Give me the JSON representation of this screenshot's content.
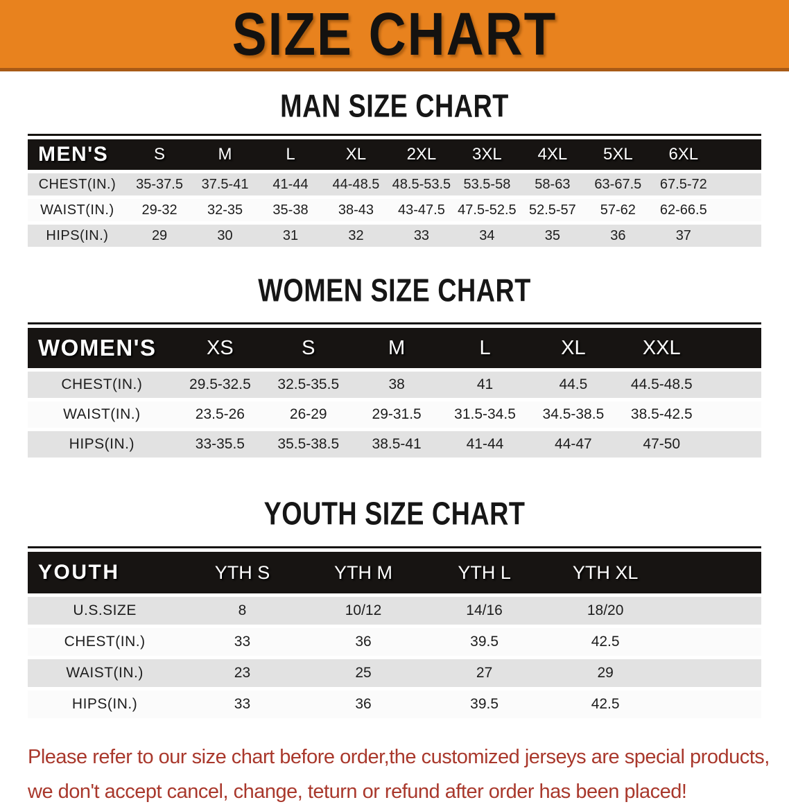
{
  "banner": {
    "title": "SIZE CHART"
  },
  "colors": {
    "banner_bg": "#E8821E",
    "banner_edge": "#A85A16",
    "banner_text": "#141210",
    "table_header_bg": "#171412",
    "table_header_text": "#FFFFFF",
    "stripe_gray": "#E2E2E2",
    "stripe_white": "#FBFBFB",
    "footer_text": "#A9382C"
  },
  "sections": {
    "men": {
      "heading": "MAN SIZE CHART",
      "corner_label": "MEN'S",
      "sizes": [
        "S",
        "M",
        "L",
        "XL",
        "2XL",
        "3XL",
        "4XL",
        "5XL",
        "6XL"
      ],
      "rows": [
        {
          "label": "CHEST(IN.)",
          "values": [
            "35-37.5",
            "37.5-41",
            "41-44",
            "44-48.5",
            "48.5-53.5",
            "53.5-58",
            "58-63",
            "63-67.5",
            "67.5-72"
          ]
        },
        {
          "label": "WAIST(IN.)",
          "values": [
            "29-32",
            "32-35",
            "35-38",
            "38-43",
            "43-47.5",
            "47.5-52.5",
            "52.5-57",
            "57-62",
            "62-66.5"
          ]
        },
        {
          "label": "HIPS(IN.)",
          "values": [
            "29",
            "30",
            "31",
            "32",
            "33",
            "34",
            "35",
            "36",
            "37"
          ]
        }
      ]
    },
    "women": {
      "heading": "WOMEN SIZE CHART",
      "corner_label": "WOMEN'S",
      "sizes": [
        "XS",
        "S",
        "M",
        "L",
        "XL",
        "XXL"
      ],
      "rows": [
        {
          "label": "CHEST(IN.)",
          "values": [
            "29.5-32.5",
            "32.5-35.5",
            "38",
            "41",
            "44.5",
            "44.5-48.5"
          ]
        },
        {
          "label": "WAIST(IN.)",
          "values": [
            "23.5-26",
            "26-29",
            "29-31.5",
            "31.5-34.5",
            "34.5-38.5",
            "38.5-42.5"
          ]
        },
        {
          "label": "HIPS(IN.)",
          "values": [
            "33-35.5",
            "35.5-38.5",
            "38.5-41",
            "41-44",
            "44-47",
            "47-50"
          ]
        }
      ]
    },
    "youth": {
      "heading": "YOUTH SIZE CHART",
      "corner_label": "YOUTH",
      "sizes": [
        "YTH S",
        "YTH M",
        "YTH L",
        "YTH XL"
      ],
      "rows": [
        {
          "label": "U.S.SIZE",
          "values": [
            "8",
            "10/12",
            "14/16",
            "18/20"
          ]
        },
        {
          "label": "CHEST(IN.)",
          "values": [
            "33",
            "36",
            "39.5",
            "42.5"
          ]
        },
        {
          "label": "WAIST(IN.)",
          "values": [
            "23",
            "25",
            "27",
            "29"
          ]
        },
        {
          "label": "HIPS(IN.)",
          "values": [
            "33",
            "36",
            "39.5",
            "42.5"
          ]
        }
      ]
    }
  },
  "footer": {
    "line1": "Please refer to our size chart before order,the customized jerseys are special products,",
    "line2": "we don't accept cancel, change, teturn or refund after order has been placed!"
  }
}
